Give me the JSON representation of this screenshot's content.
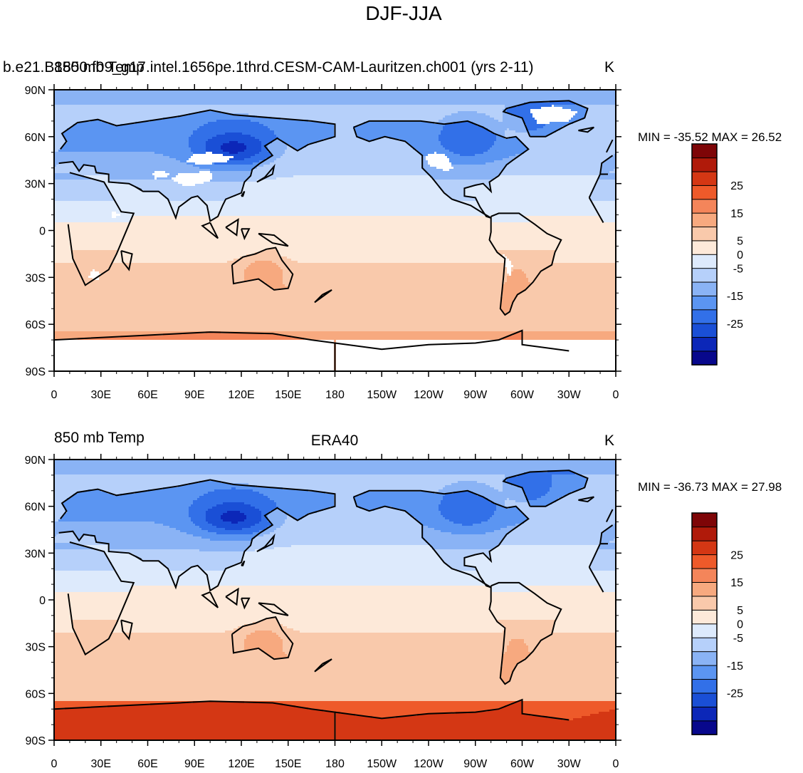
{
  "figure_title": "DJF-JJA",
  "colorbar_colors": [
    "#08088c",
    "#0c27b8",
    "#1a4fd6",
    "#3270e8",
    "#5b95f2",
    "#8ab3f5",
    "#b6d0fa",
    "#ddeafc",
    "#fde9d9",
    "#f9c9ab",
    "#f7a97f",
    "#f4855a",
    "#ee5a2a",
    "#d43714",
    "#b01a0a",
    "#7e0507"
  ],
  "chart_data": [
    {
      "type": "heatmap",
      "name_left": "b.e21.B1850.f09_g17.intel.1656pe.1thrd.CESM-CAM-Lauritzen.ch001 (yrs 2-11)",
      "name_overlay": "850 mb Temp",
      "units": "K",
      "stats": "MIN = -35.52 MAX =  26.52",
      "min": -35.52,
      "max": 26.52,
      "x_tick_labels": [
        "0",
        "30E",
        "60E",
        "90E",
        "120E",
        "150E",
        "180",
        "150W",
        "120W",
        "90W",
        "60W",
        "30W",
        "0"
      ],
      "y_tick_labels": [
        "90N",
        "60N",
        "30N",
        "0",
        "30S",
        "60S",
        "90S"
      ],
      "x_range": [
        0,
        360
      ],
      "y_range": [
        -90,
        90
      ],
      "colorbar_levels": [
        -35,
        -30,
        -25,
        -20,
        -15,
        -10,
        -5,
        0,
        5,
        10,
        15,
        20,
        25,
        30,
        35
      ],
      "colorbar_labels": [
        "25",
        "15",
        "5",
        "0",
        "-5",
        "-15",
        "-25"
      ],
      "missing_over_high_terrain": true
    },
    {
      "type": "heatmap",
      "name_left": "850 mb Temp",
      "name_center": "ERA40",
      "units": "K",
      "stats": "MIN = -36.73 MAX =  27.98",
      "min": -36.73,
      "max": 27.98,
      "x_tick_labels": [
        "0",
        "30E",
        "60E",
        "90E",
        "120E",
        "150E",
        "180",
        "150W",
        "120W",
        "90W",
        "60W",
        "30W",
        "0"
      ],
      "y_tick_labels": [
        "90N",
        "60N",
        "30N",
        "0",
        "30S",
        "60S",
        "90S"
      ],
      "x_range": [
        0,
        360
      ],
      "y_range": [
        -90,
        90
      ],
      "colorbar_levels": [
        -35,
        -30,
        -25,
        -20,
        -15,
        -10,
        -5,
        0,
        5,
        10,
        15,
        20,
        25,
        30,
        35
      ],
      "colorbar_labels": [
        "25",
        "15",
        "5",
        "0",
        "-5",
        "-15",
        "-25"
      ],
      "missing_over_high_terrain": false
    }
  ]
}
